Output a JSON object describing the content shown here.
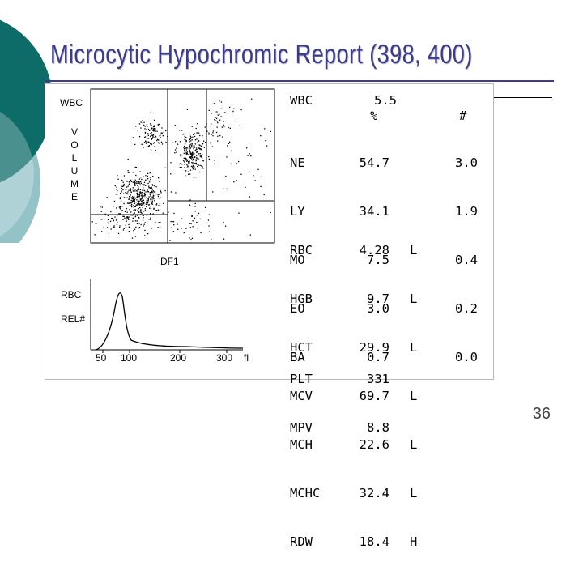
{
  "slide": {
    "title": "Microcytic Hypochromic Report (398, 400)",
    "page_number": "36",
    "accent_dark": "#0d6b68",
    "accent_light": "#93c3c7",
    "title_color": "#3b3b8a"
  },
  "scatter": {
    "wbc_label": "WBC",
    "volume_letters": [
      "V",
      "O",
      "L",
      "U",
      "M",
      "E"
    ],
    "df1_label": "DF1"
  },
  "histogram": {
    "rbc_label": "RBC",
    "rel_label": "REL#",
    "ticks": [
      "50",
      "100",
      "200",
      "300"
    ],
    "unit": "fl"
  },
  "wbc_block": {
    "label": "WBC",
    "value": "5.5",
    "pct_header": "%",
    "abs_header": "#",
    "rows": [
      {
        "name": "NE",
        "pct": "54.7",
        "abs": "3.0"
      },
      {
        "name": "LY",
        "pct": "34.1",
        "abs": "1.9"
      },
      {
        "name": "MO",
        "pct": "7.5",
        "abs": "0.4"
      },
      {
        "name": "EO",
        "pct": "3.0",
        "abs": "0.2"
      },
      {
        "name": "BA",
        "pct": "0.7",
        "abs": "0.0"
      }
    ]
  },
  "rbc_block": {
    "rows": [
      {
        "name": "RBC",
        "value": "4.28",
        "flag": "L"
      },
      {
        "name": "HGB",
        "value": "9.7",
        "flag": "L"
      },
      {
        "name": "HCT",
        "value": "29.9",
        "flag": "L"
      },
      {
        "name": "MCV",
        "value": "69.7",
        "flag": "L"
      },
      {
        "name": "MCH",
        "value": "22.6",
        "flag": "L"
      },
      {
        "name": "MCHC",
        "value": "32.4",
        "flag": "L"
      },
      {
        "name": "RDW",
        "value": "18.4",
        "flag": "H"
      }
    ]
  },
  "plt_block": {
    "rows": [
      {
        "name": "PLT",
        "value": "331"
      },
      {
        "name": "MPV",
        "value": "8.8"
      }
    ]
  }
}
